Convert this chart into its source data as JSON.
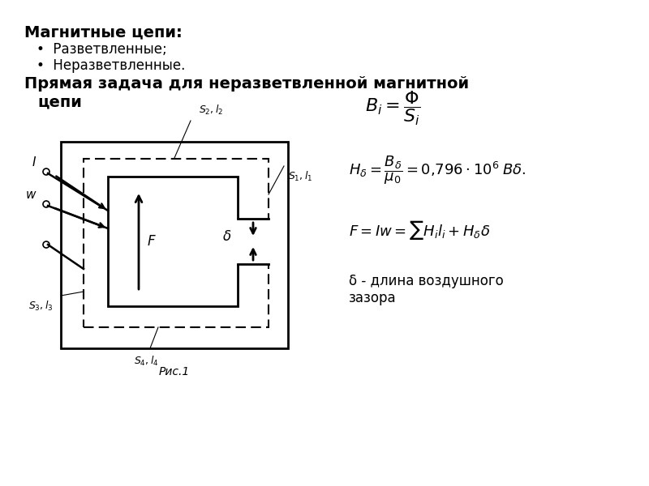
{
  "bg_color": "#ffffff",
  "title_line1": "Магнитные цепи:",
  "bullet1": "Разветвленные;",
  "bullet2": "Неразветвленные.",
  "subtitle": "Прямая задача для неразветвленной магнитной\n   цепи",
  "fig_caption": "Рис.1",
  "note": "δ - длина воздушного\nзазора"
}
